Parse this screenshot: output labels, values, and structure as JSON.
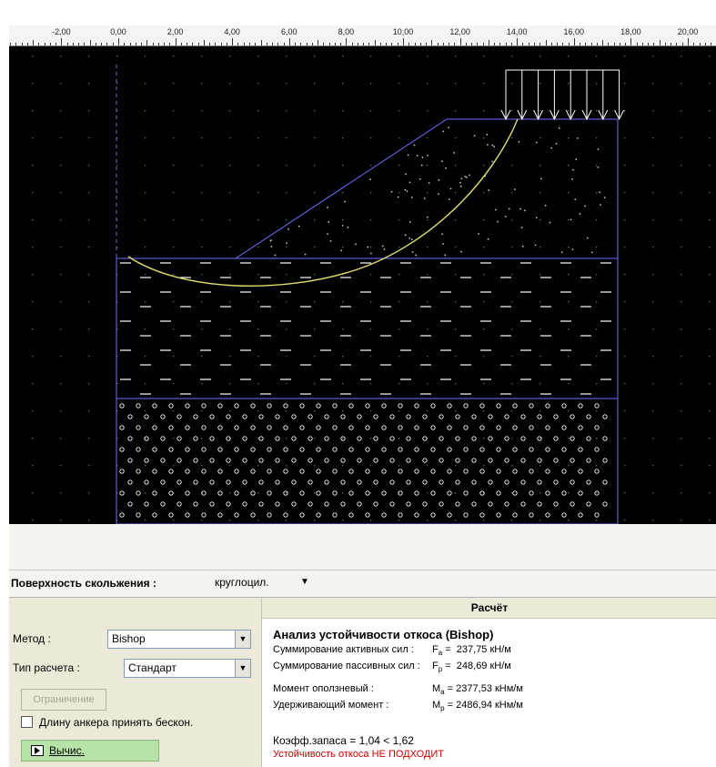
{
  "ruler": {
    "ticks": [
      "-2,00",
      "0,00",
      "2,00",
      "4,00",
      "6,00",
      "8,00",
      "10,00",
      "12,00",
      "14,00",
      "16,00",
      "18,00",
      "20,00"
    ]
  },
  "colors": {
    "background": "#000000",
    "geometry": "#7070ff",
    "slip_surface": "#e0e070",
    "water_dashes": "#ffffff",
    "load_arrows": "#ffffff",
    "status_fail": "#cc0000",
    "calc_button": "#b8e3a8"
  },
  "drawing": {
    "layers": [
      "soil-dots",
      "water-dashes",
      "gravel-circles"
    ],
    "load": "distributed-load-arrows",
    "slip_curve": "circular-slip-surface"
  },
  "surface": {
    "label": "Поверхность скольжения :",
    "value": "круглоцил."
  },
  "form": {
    "method_label": "Метод :",
    "method_value": "Bishop",
    "calc_type_label": "Тип расчета :",
    "calc_type_value": "Стандарт",
    "limit_button": "Ограничение",
    "anchor_checkbox": "Длину анкера принять бескон.",
    "calc_button": "Вычис."
  },
  "result": {
    "title": "Расчёт",
    "heading": "Анализ устойчивости откоса (Bishop)",
    "rows": [
      {
        "label": "Суммирование активных сил :",
        "sym": "F",
        "sub": "a",
        "value": "237,75 кН/м"
      },
      {
        "label": "Суммирование пассивных сил :",
        "sym": "F",
        "sub": "p",
        "value": "248,69 кН/м"
      },
      {
        "label": "Момент оползневый :",
        "sym": "M",
        "sub": "a",
        "value": "2377,53 кНм/м"
      },
      {
        "label": "Удерживающий момент :",
        "sym": "M",
        "sub": "p",
        "value": "2486,94 кНм/м"
      }
    ],
    "factor": "Коэфф.запаса = 1,04 < 1,62",
    "status": "Устойчивость откоса НЕ ПОДХОДИТ"
  }
}
